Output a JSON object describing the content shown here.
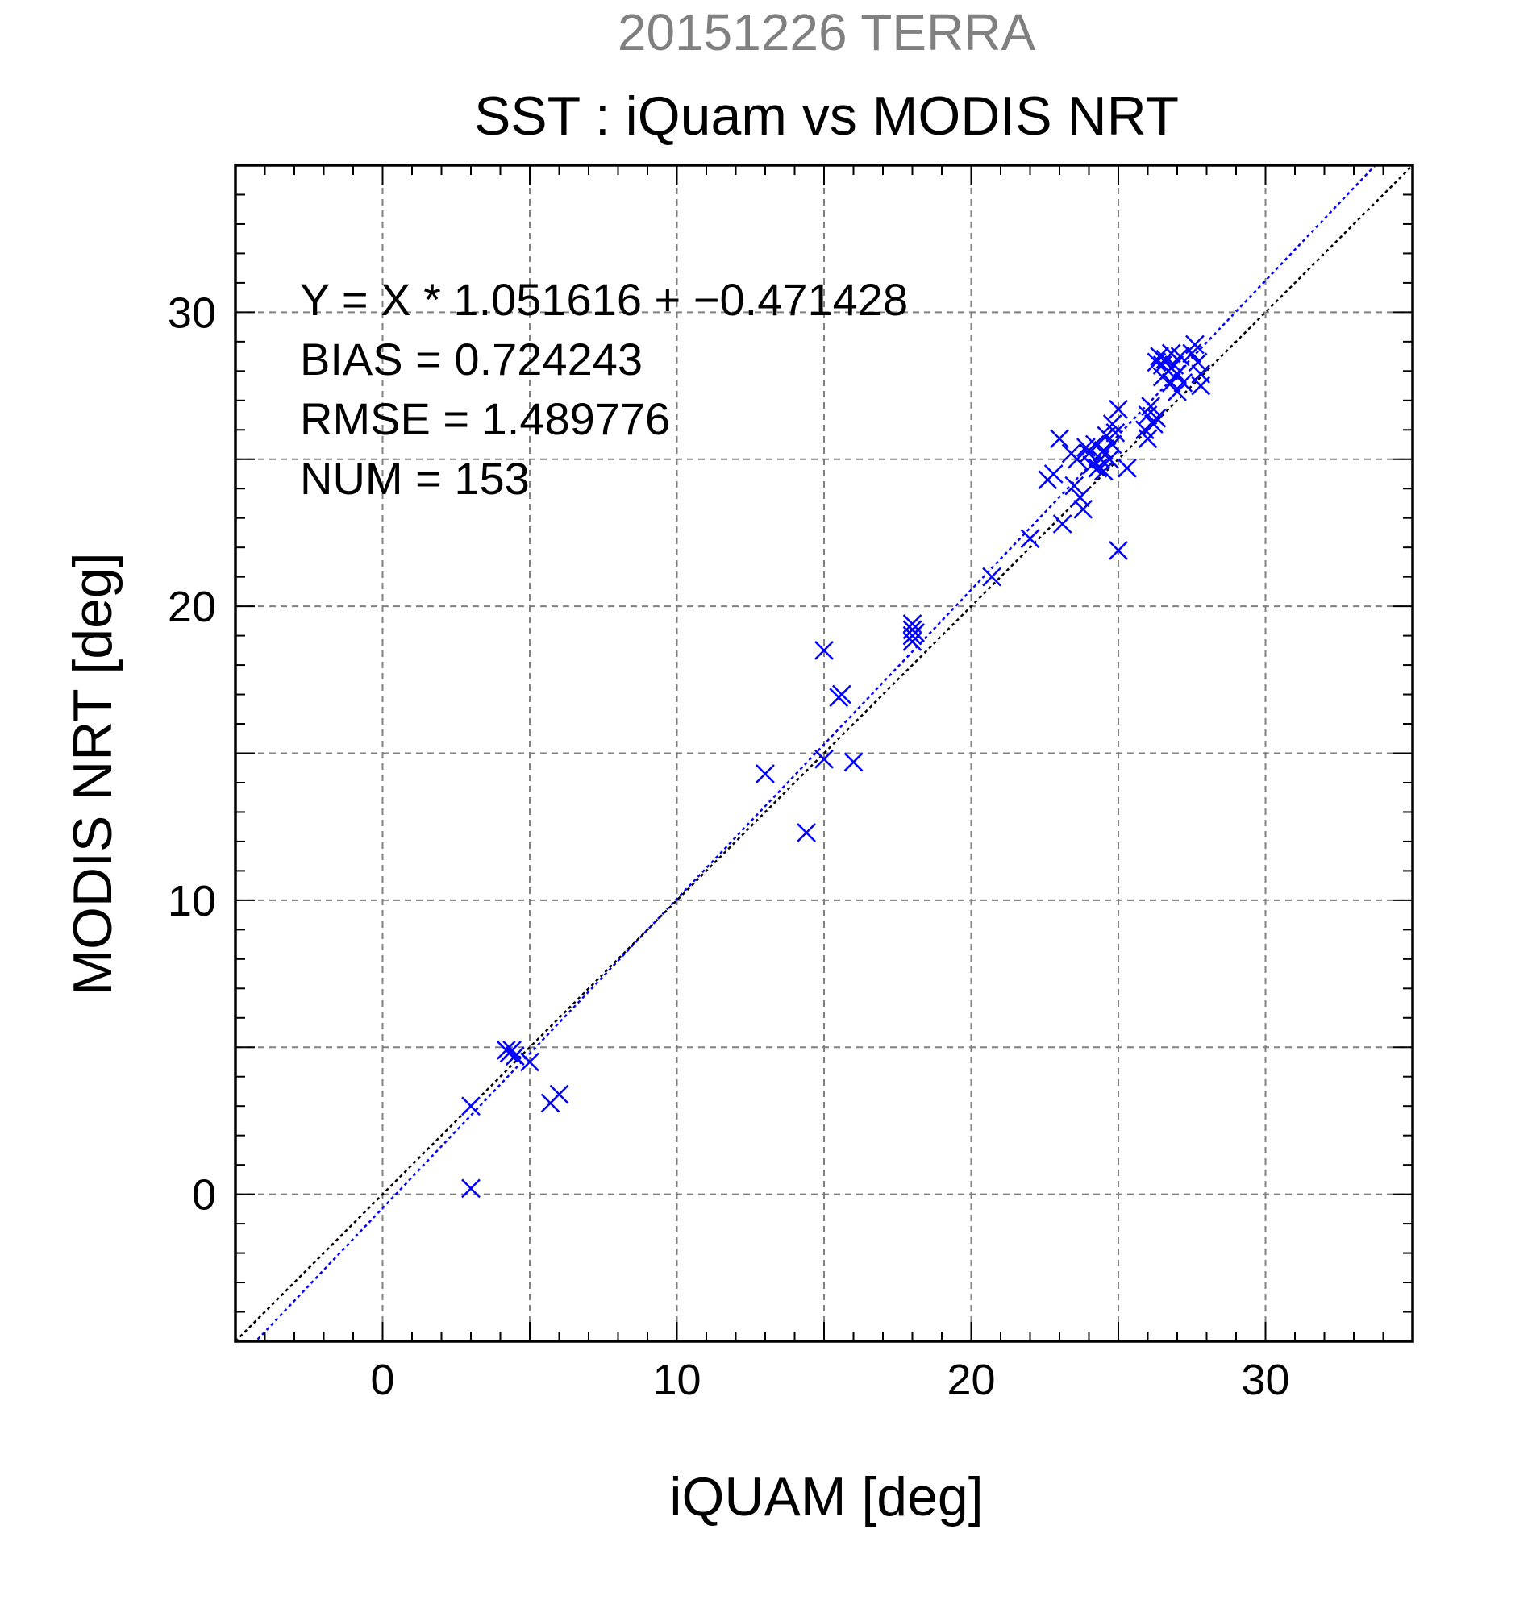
{
  "chart_data": {
    "type": "scatter",
    "supertitle": "20151226 TERRA",
    "title": "SST : iQuam vs MODIS NRT",
    "xlabel": "iQUAM [deg]",
    "ylabel": "MODIS NRT [deg]",
    "xlim": [
      -5,
      35
    ],
    "ylim": [
      -5,
      35
    ],
    "xticks": [
      0,
      10,
      20,
      30
    ],
    "yticks": [
      0,
      10,
      20,
      30
    ],
    "grid": true,
    "colors": {
      "supertitle": "#808080",
      "points": "#0000ff",
      "fit_line": "#0000ff",
      "identity_line": "#000000",
      "grid": "#808080",
      "text": "#000000"
    },
    "annotations": [
      "Y = X * 1.051616 + −0.471428",
      "BIAS = 0.724243",
      "RMSE = 1.489776",
      "NUM = 153"
    ],
    "lines": [
      {
        "name": "fit",
        "slope": 1.051616,
        "intercept": -0.471428,
        "style": "dotted",
        "color": "#0000ff"
      },
      {
        "name": "identity",
        "slope": 1.0,
        "intercept": 0.0,
        "style": "dotted",
        "color": "#000000"
      }
    ],
    "points": [
      [
        3.0,
        3.0
      ],
      [
        3.0,
        0.2
      ],
      [
        4.2,
        4.9
      ],
      [
        4.3,
        4.8
      ],
      [
        4.4,
        4.9
      ],
      [
        4.5,
        4.7
      ],
      [
        5.0,
        4.5
      ],
      [
        5.7,
        3.1
      ],
      [
        6.0,
        3.4
      ],
      [
        13.0,
        14.3
      ],
      [
        14.4,
        12.3
      ],
      [
        15.0,
        18.5
      ],
      [
        15.0,
        14.8
      ],
      [
        16.0,
        14.7
      ],
      [
        15.5,
        16.9
      ],
      [
        15.6,
        17.0
      ],
      [
        18.0,
        19.4
      ],
      [
        18.0,
        19.2
      ],
      [
        18.0,
        19.0
      ],
      [
        18.0,
        18.8
      ],
      [
        18.1,
        19.1
      ],
      [
        20.7,
        21.0
      ],
      [
        22.0,
        22.3
      ],
      [
        22.6,
        24.3
      ],
      [
        22.8,
        24.5
      ],
      [
        23.0,
        25.7
      ],
      [
        23.1,
        22.8
      ],
      [
        23.4,
        25.2
      ],
      [
        23.5,
        24.1
      ],
      [
        23.6,
        25.0
      ],
      [
        23.7,
        23.7
      ],
      [
        23.8,
        23.3
      ],
      [
        23.9,
        25.4
      ],
      [
        24.0,
        25.2
      ],
      [
        24.1,
        24.8
      ],
      [
        24.2,
        25.5
      ],
      [
        24.3,
        24.7
      ],
      [
        24.4,
        25.0
      ],
      [
        24.5,
        25.3
      ],
      [
        24.5,
        24.6
      ],
      [
        24.6,
        25.8
      ],
      [
        24.7,
        25.0
      ],
      [
        24.8,
        26.2
      ],
      [
        24.8,
        25.5
      ],
      [
        24.9,
        25.9
      ],
      [
        25.0,
        26.7
      ],
      [
        25.0,
        21.9
      ],
      [
        25.3,
        24.7
      ],
      [
        25.9,
        26.0
      ],
      [
        26.0,
        26.5
      ],
      [
        26.0,
        25.7
      ],
      [
        26.1,
        26.8
      ],
      [
        26.2,
        26.2
      ],
      [
        26.3,
        28.3
      ],
      [
        26.3,
        26.4
      ],
      [
        26.4,
        28.5
      ],
      [
        26.5,
        28.2
      ],
      [
        26.5,
        27.8
      ],
      [
        26.6,
        28.4
      ],
      [
        26.7,
        28.0
      ],
      [
        26.8,
        28.6
      ],
      [
        26.8,
        27.6
      ],
      [
        26.9,
        28.2
      ],
      [
        27.0,
        27.9
      ],
      [
        27.0,
        27.3
      ],
      [
        27.1,
        28.5
      ],
      [
        27.2,
        27.6
      ],
      [
        27.5,
        28.6
      ],
      [
        27.6,
        28.9
      ],
      [
        27.7,
        28.3
      ],
      [
        27.8,
        27.9
      ],
      [
        27.8,
        27.5
      ]
    ]
  }
}
